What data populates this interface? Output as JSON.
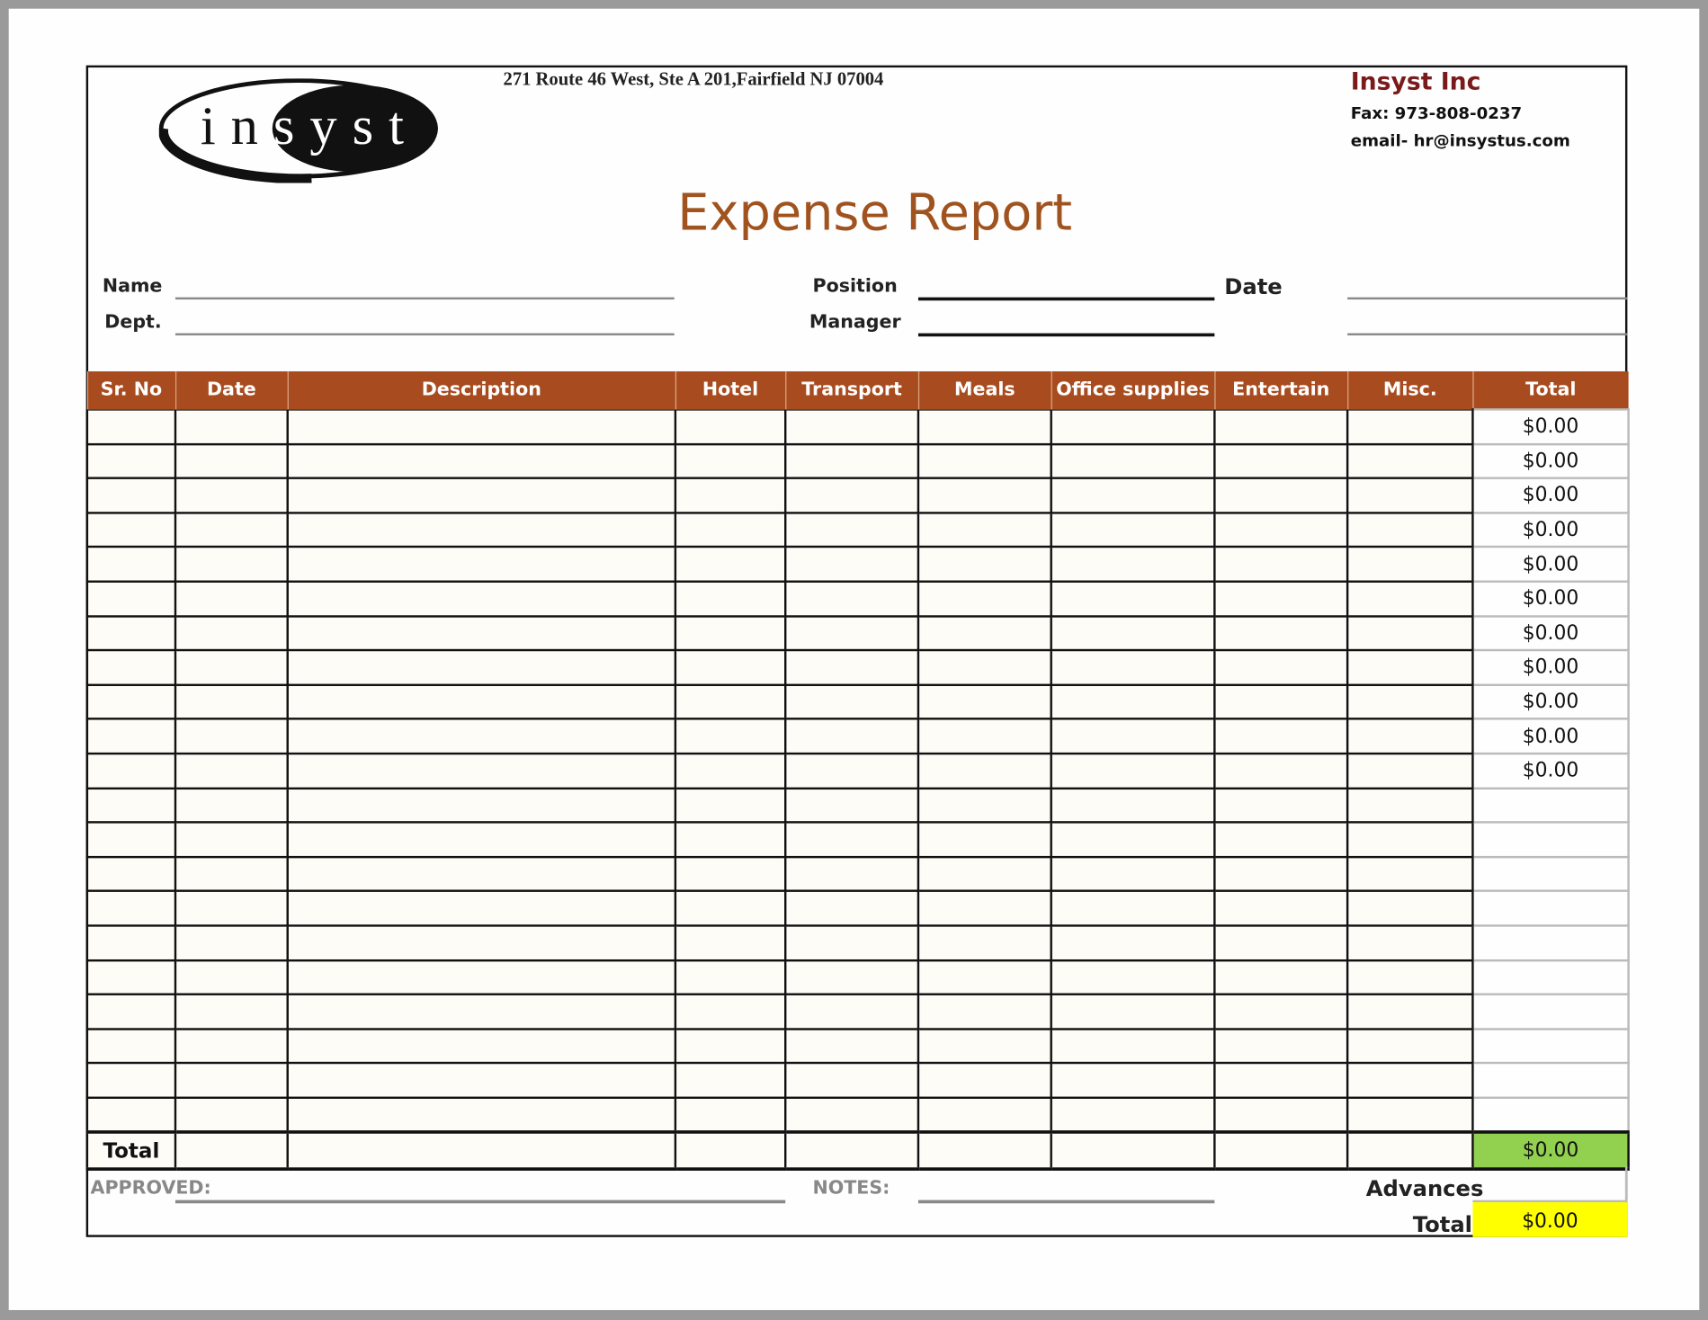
{
  "company": {
    "logo_text": "insyst",
    "address": "271 Route 46 West, Ste A 201,Fairfield NJ 07004",
    "name": "Insyst Inc",
    "fax": "Fax: 973-808-0237",
    "email": "email- hr@insystus.com"
  },
  "title": "Expense Report",
  "fields": {
    "name": "Name",
    "dept": "Dept.",
    "position": "Position",
    "manager": "Manager",
    "date": "Date"
  },
  "colors": {
    "header": "#a84c1f",
    "title": "#a0531f",
    "company": "#7a1a1a",
    "grand_total": "#92d050",
    "net_total": "#ffff00"
  },
  "table": {
    "headers": [
      "Sr. No",
      "Date",
      "Description",
      "Hotel",
      "Transport",
      "Meals",
      "Office supplies",
      "Entertain",
      "Misc.",
      "Total"
    ],
    "row_totals": [
      "$0.00",
      "$0.00",
      "$0.00",
      "$0.00",
      "$0.00",
      "$0.00",
      "$0.00",
      "$0.00",
      "$0.00",
      "$0.00",
      "$0.00",
      "",
      "",
      "",
      "",
      "",
      "",
      "",
      "",
      "",
      ""
    ],
    "total_label": "Total",
    "grand_total": "$0.00"
  },
  "footer": {
    "approved": "APPROVED:",
    "notes": "NOTES:",
    "advances": "Advances",
    "total_label": "Total",
    "total_value": "$0.00"
  }
}
